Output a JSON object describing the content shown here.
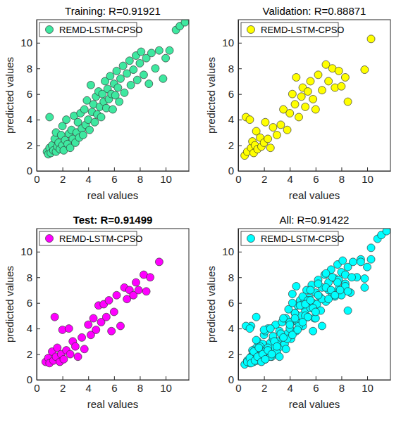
{
  "chart_data": [
    {
      "type": "scatter",
      "title": "Training: R=0.91921",
      "x_label": "real values",
      "y_label": "predicted values",
      "xlim": [
        0,
        11.8
      ],
      "ylim": [
        0,
        11.8
      ],
      "xticks": [
        0,
        2,
        4,
        6,
        8,
        10
      ],
      "yticks": [
        0,
        2,
        4,
        6,
        8,
        10
      ],
      "legend": "upper left",
      "series": [
        {
          "name": "REMD-LSTM-CPSO",
          "color": "#3ee8a0",
          "marker": "circle",
          "x": [
            0.8,
            0.9,
            1.0,
            1.0,
            1.1,
            1.2,
            1.3,
            1.4,
            1.5,
            1.5,
            1.6,
            1.7,
            1.8,
            1.9,
            2.0,
            2.0,
            2.1,
            2.2,
            2.3,
            2.4,
            2.5,
            2.6,
            2.7,
            2.8,
            2.9,
            3.0,
            3.1,
            3.2,
            3.3,
            3.4,
            3.5,
            3.6,
            3.7,
            3.8,
            3.9,
            4.0,
            4.1,
            4.2,
            4.3,
            4.4,
            4.5,
            4.6,
            4.7,
            4.8,
            4.9,
            5.0,
            5.1,
            5.2,
            5.3,
            5.4,
            5.5,
            5.6,
            5.7,
            5.8,
            5.9,
            6.0,
            6.1,
            6.2,
            6.3,
            6.4,
            6.5,
            6.7,
            6.8,
            7.0,
            7.2,
            7.3,
            7.5,
            7.7,
            7.8,
            8.0,
            8.1,
            8.3,
            8.5,
            8.7,
            8.9,
            9.2,
            9.5,
            9.8,
            10.0,
            10.3,
            10.8,
            11.1,
            11.5
          ],
          "values": [
            1.5,
            1.3,
            1.8,
            4.2,
            1.4,
            2.0,
            1.6,
            2.5,
            1.5,
            3.0,
            1.9,
            2.2,
            1.7,
            2.8,
            2.0,
            3.5,
            1.6,
            2.4,
            4.0,
            2.1,
            2.9,
            1.8,
            3.2,
            2.5,
            4.3,
            2.2,
            3.0,
            3.8,
            2.6,
            4.5,
            3.3,
            2.8,
            4.8,
            3.6,
            5.5,
            4.0,
            3.2,
            6.7,
            4.6,
            5.2,
            3.8,
            5.8,
            4.4,
            6.2,
            5.0,
            4.2,
            6.0,
            5.4,
            7.0,
            4.9,
            6.4,
            5.6,
            7.4,
            6.0,
            4.8,
            6.8,
            5.9,
            7.8,
            6.5,
            5.4,
            7.2,
            8.2,
            6.1,
            7.6,
            8.6,
            6.7,
            7.9,
            9.0,
            7.1,
            8.4,
            9.3,
            7.5,
            8.8,
            6.8,
            9.2,
            8.0,
            9.4,
            7.2,
            8.8,
            9.4,
            11.0,
            11.3,
            11.6
          ]
        }
      ]
    },
    {
      "type": "scatter",
      "title": "Validation: R=0.88871",
      "x_label": "real values",
      "y_label": "predicted values",
      "xlim": [
        0,
        11.8
      ],
      "ylim": [
        0,
        11.8
      ],
      "xticks": [
        0,
        2,
        4,
        6,
        8,
        10
      ],
      "yticks": [
        0,
        2,
        4,
        6,
        8,
        10
      ],
      "legend": "upper left",
      "series": [
        {
          "name": "REMD-LSTM-CPSO",
          "color": "#ffff00",
          "marker": "circle",
          "x": [
            0.5,
            0.6,
            0.7,
            0.9,
            1.0,
            1.1,
            1.2,
            1.3,
            1.4,
            1.5,
            1.7,
            1.8,
            2.0,
            2.1,
            2.3,
            2.5,
            2.7,
            3.0,
            3.3,
            3.5,
            3.8,
            4.0,
            4.2,
            4.4,
            4.5,
            4.7,
            4.9,
            5.0,
            5.2,
            5.4,
            5.6,
            5.8,
            6.0,
            6.2,
            6.5,
            6.8,
            7.0,
            7.3,
            7.5,
            7.8,
            8.0,
            8.3,
            8.5,
            9.8,
            10.3
          ],
          "values": [
            1.2,
            4.2,
            1.5,
            4.0,
            1.8,
            2.3,
            1.4,
            2.0,
            3.1,
            1.7,
            2.6,
            1.9,
            2.2,
            3.8,
            2.5,
            1.8,
            3.4,
            2.8,
            3.6,
            4.8,
            3.2,
            4.5,
            6.0,
            5.2,
            7.3,
            4.2,
            5.8,
            6.5,
            5.0,
            6.2,
            7.0,
            5.6,
            4.8,
            7.5,
            6.3,
            8.3,
            7.0,
            8.0,
            6.5,
            7.8,
            6.6,
            7.3,
            5.4,
            7.9,
            10.3
          ]
        }
      ]
    },
    {
      "type": "scatter",
      "title": "Test: R=0.91499",
      "x_label": "real values",
      "y_label": "predicted values",
      "xlim": [
        0,
        11.8
      ],
      "ylim": [
        0,
        11.8
      ],
      "xticks": [
        0,
        2,
        4,
        6,
        8,
        10
      ],
      "yticks": [
        0,
        2,
        4,
        6,
        8,
        10
      ],
      "legend": "upper left",
      "series": [
        {
          "name": "REMD-LSTM-CPSO",
          "color": "#ff00ff",
          "marker": "circle",
          "x": [
            0.7,
            0.9,
            1.0,
            1.2,
            1.3,
            1.4,
            1.5,
            1.6,
            1.8,
            1.9,
            2.0,
            2.1,
            2.3,
            2.5,
            2.6,
            2.8,
            3.0,
            3.2,
            3.5,
            3.7,
            4.0,
            4.2,
            4.4,
            4.6,
            4.8,
            5.0,
            5.2,
            5.4,
            5.6,
            5.8,
            6.0,
            6.2,
            6.5,
            6.8,
            7.0,
            7.2,
            7.5,
            7.7,
            7.9,
            8.3,
            8.5,
            8.8,
            9.5
          ],
          "values": [
            1.4,
            1.7,
            1.3,
            2.2,
            1.5,
            4.9,
            1.8,
            2.5,
            1.4,
            2.0,
            3.9,
            1.6,
            2.3,
            4.0,
            2.0,
            3.0,
            2.6,
            1.8,
            3.3,
            2.4,
            4.3,
            3.5,
            4.8,
            3.9,
            5.8,
            4.5,
            5.9,
            4.9,
            6.2,
            3.8,
            5.3,
            6.6,
            4.2,
            7.2,
            6.3,
            7.0,
            6.6,
            7.6,
            7.0,
            8.2,
            6.9,
            8.0,
            9.2
          ]
        }
      ]
    },
    {
      "type": "scatter",
      "title": "All: R=0.91422",
      "x_label": "real values",
      "y_label": "predicted values",
      "xlim": [
        0,
        11.8
      ],
      "ylim": [
        0,
        11.8
      ],
      "xticks": [
        0,
        2,
        4,
        6,
        8,
        10
      ],
      "yticks": [
        0,
        2,
        4,
        6,
        8,
        10
      ],
      "legend": "upper left",
      "series": [
        {
          "name": "REMD-LSTM-CPSO",
          "color": "#00ffff",
          "marker": "circle",
          "x": [
            0.8,
            0.9,
            1.0,
            1.0,
            1.1,
            1.2,
            1.3,
            1.4,
            1.5,
            1.5,
            1.6,
            1.7,
            1.8,
            1.9,
            2.0,
            2.0,
            2.1,
            2.2,
            2.3,
            2.4,
            2.5,
            2.6,
            2.7,
            2.8,
            2.9,
            3.0,
            3.1,
            3.2,
            3.3,
            3.4,
            3.5,
            3.6,
            3.7,
            3.8,
            3.9,
            4.0,
            4.1,
            4.2,
            4.3,
            4.4,
            4.5,
            4.6,
            4.7,
            4.8,
            4.9,
            5.0,
            5.1,
            5.2,
            5.3,
            5.4,
            5.5,
            5.6,
            5.7,
            5.8,
            5.9,
            6.0,
            6.1,
            6.2,
            6.3,
            6.4,
            6.5,
            6.7,
            6.8,
            7.0,
            7.2,
            7.3,
            7.5,
            7.7,
            7.8,
            8.0,
            8.1,
            8.3,
            8.5,
            8.7,
            8.9,
            9.2,
            9.5,
            9.8,
            10.0,
            10.3,
            10.8,
            11.1,
            11.5,
            0.5,
            0.6,
            0.7,
            0.9,
            1.0,
            1.1,
            1.2,
            1.3,
            1.4,
            1.5,
            1.7,
            1.8,
            2.0,
            2.1,
            2.3,
            2.5,
            2.7,
            3.0,
            3.3,
            3.5,
            3.8,
            4.0,
            4.2,
            4.4,
            4.5,
            4.7,
            4.9,
            5.0,
            5.2,
            5.4,
            5.6,
            5.8,
            6.0,
            6.2,
            6.5,
            6.8,
            7.0,
            7.3,
            7.5,
            7.8,
            8.0,
            8.3,
            8.5,
            9.8,
            10.3,
            0.7,
            0.9,
            1.0,
            1.2,
            1.3,
            1.4,
            1.5,
            1.6,
            1.8,
            1.9,
            2.0,
            2.1,
            2.3,
            2.5,
            2.6,
            2.8,
            3.0,
            3.2,
            3.5,
            3.7,
            4.0,
            4.2,
            4.4,
            4.6,
            4.8,
            5.0,
            5.2,
            5.4,
            5.6,
            5.8,
            6.0,
            6.2,
            6.5,
            6.8,
            7.0,
            7.2,
            7.5,
            7.7,
            7.9,
            8.3,
            8.5,
            8.8,
            9.5
          ],
          "values": [
            1.5,
            1.3,
            1.8,
            4.2,
            1.4,
            2.0,
            1.6,
            2.5,
            1.5,
            3.0,
            1.9,
            2.2,
            1.7,
            2.8,
            2.0,
            3.5,
            1.6,
            2.4,
            4.0,
            2.1,
            2.9,
            1.8,
            3.2,
            2.5,
            4.3,
            2.2,
            3.0,
            3.8,
            2.6,
            4.5,
            3.3,
            2.8,
            4.8,
            3.6,
            5.5,
            4.0,
            3.2,
            6.7,
            4.6,
            5.2,
            3.8,
            5.8,
            4.4,
            6.2,
            5.0,
            4.2,
            6.0,
            5.4,
            7.0,
            4.9,
            6.4,
            5.6,
            7.4,
            6.0,
            4.8,
            6.8,
            5.9,
            7.8,
            6.5,
            5.4,
            7.2,
            8.2,
            6.1,
            7.6,
            8.6,
            6.7,
            7.9,
            9.0,
            7.1,
            8.4,
            9.3,
            7.5,
            8.8,
            6.8,
            9.2,
            8.0,
            9.4,
            7.2,
            8.8,
            9.4,
            11.0,
            11.3,
            11.6,
            1.2,
            4.2,
            1.5,
            4.0,
            1.8,
            2.3,
            1.4,
            2.0,
            3.1,
            1.7,
            2.6,
            1.9,
            2.2,
            3.8,
            2.5,
            1.8,
            3.4,
            2.8,
            3.6,
            4.8,
            3.2,
            4.5,
            6.0,
            5.2,
            7.3,
            4.2,
            5.8,
            6.5,
            5.0,
            6.2,
            7.0,
            5.6,
            4.8,
            7.5,
            6.3,
            8.3,
            7.0,
            8.0,
            6.5,
            7.8,
            6.6,
            7.3,
            5.4,
            7.9,
            10.3,
            1.4,
            1.7,
            1.3,
            2.2,
            1.5,
            4.9,
            1.8,
            2.5,
            1.4,
            2.0,
            3.9,
            1.6,
            2.3,
            4.0,
            2.0,
            3.0,
            2.6,
            1.8,
            3.3,
            2.4,
            4.3,
            3.5,
            4.8,
            3.9,
            5.8,
            4.5,
            5.9,
            4.9,
            6.2,
            3.8,
            5.3,
            6.6,
            4.2,
            7.2,
            6.3,
            7.0,
            6.6,
            7.6,
            7.0,
            8.2,
            6.9,
            8.0,
            9.2
          ]
        }
      ]
    }
  ]
}
